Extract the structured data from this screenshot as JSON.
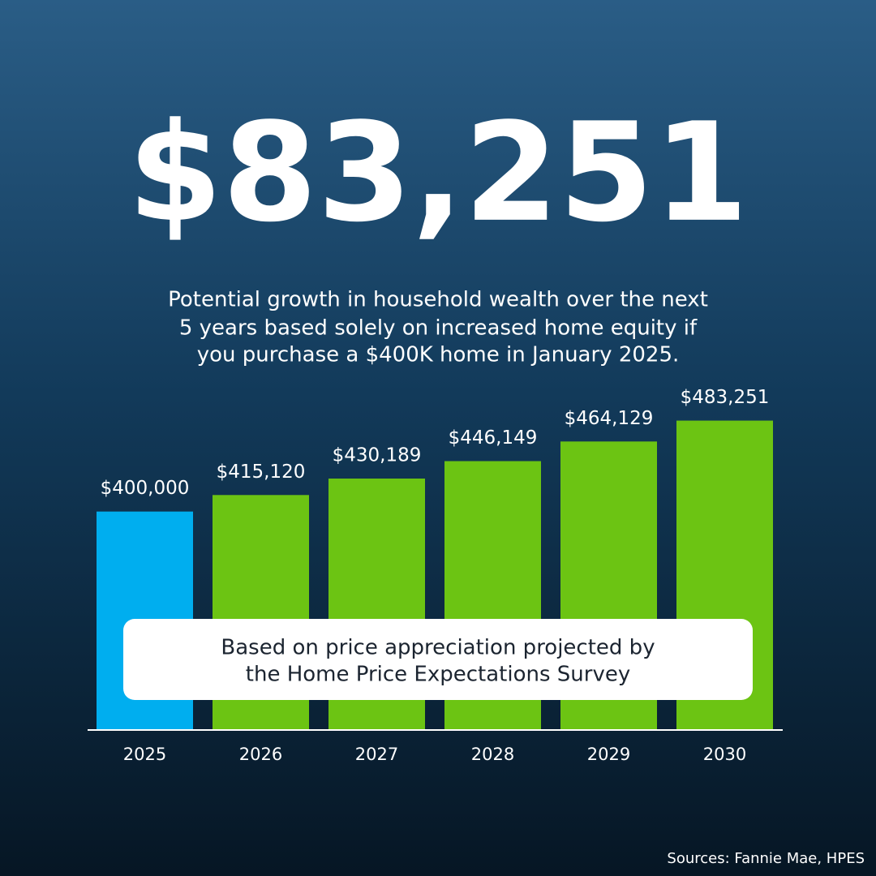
{
  "chart_data": {
    "type": "bar",
    "headline": "$83,251",
    "subtitle": [
      "Potential growth in household wealth over the next",
      "5 years based solely on increased home equity if",
      "you purchase a $400K home in January 2025."
    ],
    "categories": [
      "2025",
      "2026",
      "2027",
      "2028",
      "2029",
      "2030"
    ],
    "values": [
      400000,
      415120,
      430189,
      446149,
      464129,
      483251
    ],
    "value_labels": [
      "$400,000",
      "$415,120",
      "$430,189",
      "$446,149",
      "$464,129",
      "$483,251"
    ],
    "colors": [
      "#00aeef",
      "#6cc413",
      "#6cc413",
      "#6cc413",
      "#6cc413",
      "#6cc413"
    ],
    "ylim": [
      200000,
      500000
    ],
    "annotation": [
      "Based on price appreciation projected by",
      "the Home Price Expectations Survey"
    ],
    "source": "Sources: Fannie Mae, HPES"
  }
}
